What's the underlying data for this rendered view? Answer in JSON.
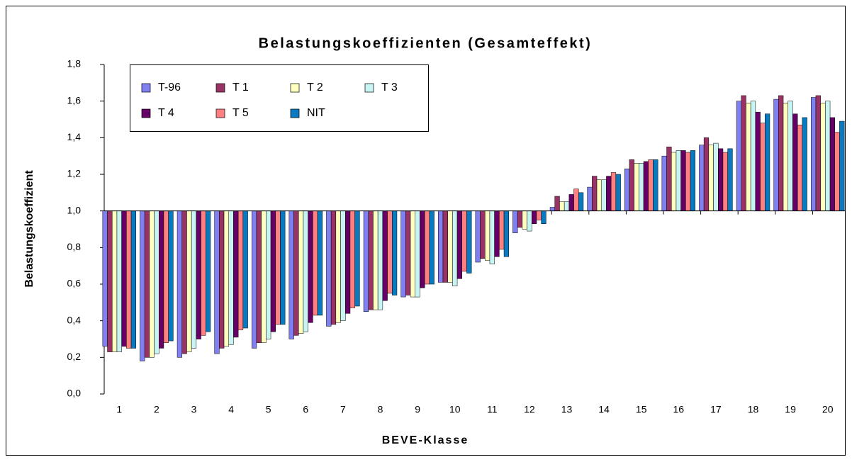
{
  "chart_data": {
    "type": "bar",
    "title": "Belastungskoeffizienten (Gesamteffekt)",
    "x_label": "BEVE-Klasse",
    "y_label": "Belastungskoeffizient",
    "categories": [
      "1",
      "2",
      "3",
      "4",
      "5",
      "6",
      "7",
      "8",
      "9",
      "10",
      "11",
      "12",
      "13",
      "14",
      "15",
      "16",
      "17",
      "18",
      "19",
      "20"
    ],
    "baseline": 1,
    "series": [
      {
        "name": "T-96",
        "color": "#8080f0",
        "values": [
          0.26,
          0.18,
          0.2,
          0.22,
          0.25,
          0.3,
          0.37,
          0.45,
          0.53,
          0.61,
          0.72,
          0.88,
          1.02,
          1.13,
          1.23,
          1.3,
          1.36,
          1.6,
          1.61,
          1.62
        ]
      },
      {
        "name": "T 1",
        "color": "#993366",
        "values": [
          0.23,
          0.2,
          0.22,
          0.25,
          0.28,
          0.32,
          0.38,
          0.46,
          0.54,
          0.61,
          0.74,
          0.91,
          1.08,
          1.19,
          1.28,
          1.35,
          1.4,
          1.63,
          1.63,
          1.63
        ]
      },
      {
        "name": "T 2",
        "color": "#ffffc0",
        "values": [
          0.23,
          0.2,
          0.23,
          0.26,
          0.28,
          0.33,
          0.39,
          0.46,
          0.53,
          0.61,
          0.73,
          0.9,
          1.05,
          1.17,
          1.26,
          1.32,
          1.36,
          1.59,
          1.59,
          1.59
        ]
      },
      {
        "name": "T 3",
        "color": "#c8f4f4",
        "values": [
          0.23,
          0.22,
          0.25,
          0.27,
          0.3,
          0.34,
          0.4,
          0.46,
          0.53,
          0.59,
          0.71,
          0.89,
          1.05,
          1.17,
          1.26,
          1.33,
          1.37,
          1.6,
          1.6,
          1.6
        ]
      },
      {
        "name": "T 4",
        "color": "#660066",
        "values": [
          0.26,
          0.25,
          0.3,
          0.31,
          0.34,
          0.39,
          0.44,
          0.51,
          0.58,
          0.63,
          0.75,
          0.93,
          1.09,
          1.19,
          1.27,
          1.33,
          1.34,
          1.54,
          1.53,
          1.51
        ]
      },
      {
        "name": "T 5",
        "color": "#ff8080",
        "values": [
          0.25,
          0.28,
          0.32,
          0.35,
          0.38,
          0.43,
          0.47,
          0.55,
          0.6,
          0.67,
          0.79,
          0.95,
          1.12,
          1.21,
          1.28,
          1.32,
          1.32,
          1.48,
          1.47,
          1.43
        ]
      },
      {
        "name": "NIT",
        "color": "#0a7ac0",
        "values": [
          0.25,
          0.29,
          0.34,
          0.36,
          0.38,
          0.43,
          0.48,
          0.54,
          0.6,
          0.66,
          0.75,
          0.93,
          1.1,
          1.2,
          1.28,
          1.33,
          1.34,
          1.53,
          1.51,
          1.49
        ]
      }
    ],
    "ylim": [
      0,
      1.8
    ],
    "yticks": [
      {
        "value": 0,
        "label": "0,0"
      },
      {
        "value": 0.2,
        "label": "0,2"
      },
      {
        "value": 0.4,
        "label": "0,4"
      },
      {
        "value": 0.6,
        "label": "0,6"
      },
      {
        "value": 0.8,
        "label": "0,8"
      },
      {
        "value": 1,
        "label": "1,0"
      },
      {
        "value": 1.2,
        "label": "1,2"
      },
      {
        "value": 1.4,
        "label": "1,4"
      },
      {
        "value": 1.6,
        "label": "1,6"
      },
      {
        "value": 1.8,
        "label": "1,8"
      }
    ],
    "legend": "top-left"
  }
}
